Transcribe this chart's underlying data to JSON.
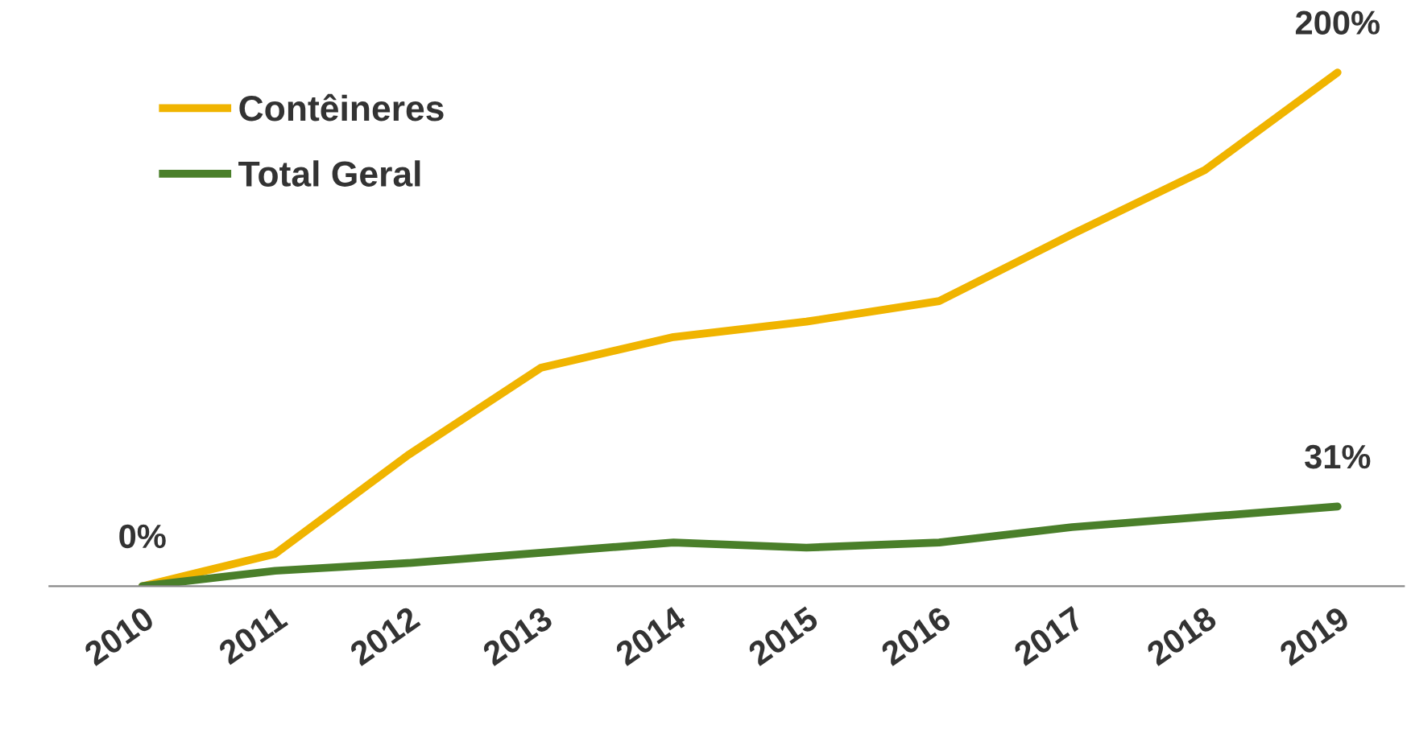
{
  "chart_data": {
    "type": "line",
    "categories": [
      "2010",
      "2011",
      "2012",
      "2013",
      "2014",
      "2015",
      "2016",
      "2017",
      "2018",
      "2019"
    ],
    "series": [
      {
        "name": "Contêineres",
        "color": "#f0b400",
        "values": [
          0,
          12.6,
          51,
          85,
          97,
          103,
          111,
          137,
          162,
          200
        ],
        "value_labels": [
          "0%",
          null,
          null,
          null,
          null,
          null,
          null,
          null,
          null,
          "200%"
        ]
      },
      {
        "name": "Total Geral",
        "color": "#4a7f2a",
        "values": [
          0,
          6,
          9,
          13,
          17,
          15,
          17,
          23,
          27,
          31
        ],
        "value_labels": [
          null,
          null,
          null,
          null,
          null,
          null,
          null,
          null,
          null,
          "31%"
        ]
      }
    ],
    "legend": "top left",
    "grid": false,
    "marker": "none",
    "line_style": "solid"
  }
}
